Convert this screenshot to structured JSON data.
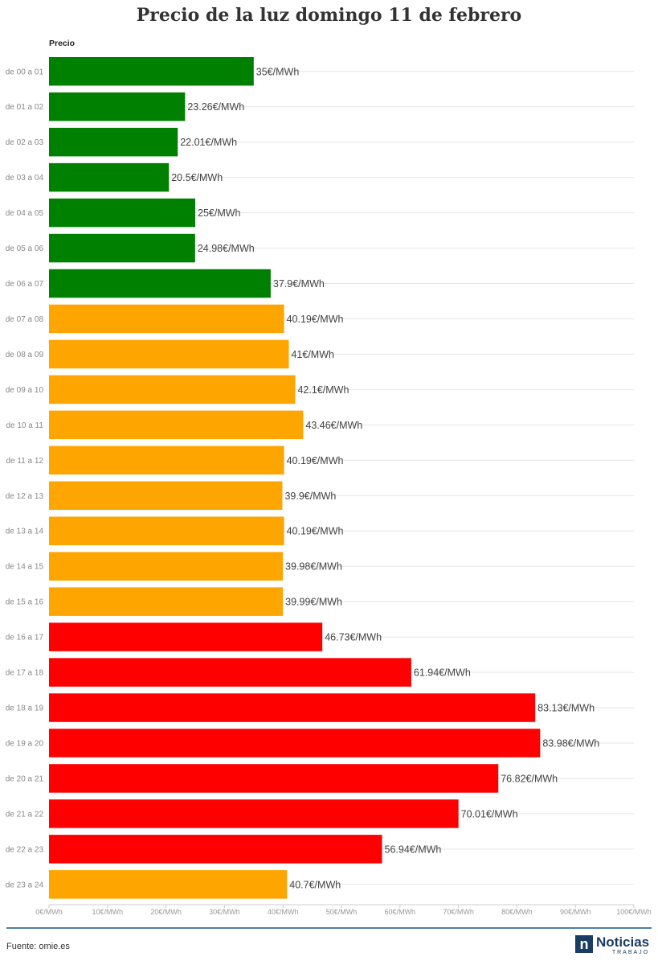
{
  "chart_data": {
    "type": "bar",
    "orientation": "horizontal",
    "title": "Precio de la luz domingo 11 de febrero",
    "ylabel": "Precio",
    "categories": [
      "de 00 a 01",
      "de 01 a 02",
      "de 02 a 03",
      "de 03 a 04",
      "de 04 a 05",
      "de 05 a 06",
      "de 06 a 07",
      "de 07 a 08",
      "de 08 a 09",
      "de 09 a 10",
      "de 10 a 11",
      "de 11 a 12",
      "de 12 a 13",
      "de 13 a 14",
      "de 14 a 15",
      "de 15 a 16",
      "de 16 a 17",
      "de 17 a 18",
      "de 18 a 19",
      "de 19 a 20",
      "de 20 a 21",
      "de 21 a 22",
      "de 22 a 23",
      "de 23 a 24"
    ],
    "values": [
      35,
      23.26,
      22.01,
      20.5,
      25,
      24.98,
      37.9,
      40.19,
      41,
      42.1,
      43.46,
      40.19,
      39.9,
      40.19,
      39.98,
      39.99,
      46.73,
      61.94,
      83.13,
      83.98,
      76.82,
      70.01,
      56.94,
      40.7
    ],
    "value_labels": [
      "35€/MWh",
      "23.26€/MWh",
      "22.01€/MWh",
      "20.5€/MWh",
      "25€/MWh",
      "24.98€/MWh",
      "37.9€/MWh",
      "40.19€/MWh",
      "41€/MWh",
      "42.1€/MWh",
      "43.46€/MWh",
      "40.19€/MWh",
      "39.9€/MWh",
      "40.19€/MWh",
      "39.98€/MWh",
      "39.99€/MWh",
      "46.73€/MWh",
      "61.94€/MWh",
      "83.13€/MWh",
      "83.98€/MWh",
      "76.82€/MWh",
      "70.01€/MWh",
      "56.94€/MWh",
      "40.7€/MWh"
    ],
    "bar_colors": [
      "#008000",
      "#008000",
      "#008000",
      "#008000",
      "#008000",
      "#008000",
      "#008000",
      "#ffa500",
      "#ffa500",
      "#ffa500",
      "#ffa500",
      "#ffa500",
      "#ffa500",
      "#ffa500",
      "#ffa500",
      "#ffa500",
      "#ff0000",
      "#ff0000",
      "#ff0000",
      "#ff0000",
      "#ff0000",
      "#ff0000",
      "#ff0000",
      "#ffa500"
    ],
    "xlim": [
      0,
      100
    ],
    "xticks": [
      0,
      10,
      20,
      30,
      40,
      50,
      60,
      70,
      80,
      90,
      100
    ],
    "xtick_labels": [
      "0€/MWh",
      "10€/MWh",
      "20€/MWh",
      "30€/MWh",
      "40€/MWh",
      "50€/MWh",
      "60€/MWh",
      "70€/MWh",
      "80€/MWh",
      "90€/MWh",
      "100€/MWh"
    ],
    "grid": true
  },
  "footer": {
    "source": "Fuente: omie.es",
    "logo_mark": "n",
    "logo_name": "Noticias",
    "logo_sub": "TRABAJO"
  },
  "colors": {
    "cheap": "#008000",
    "medium": "#ffa500",
    "expensive": "#ff0000",
    "brand": "#1c3d63",
    "footer_line": "#4d7fa6"
  }
}
